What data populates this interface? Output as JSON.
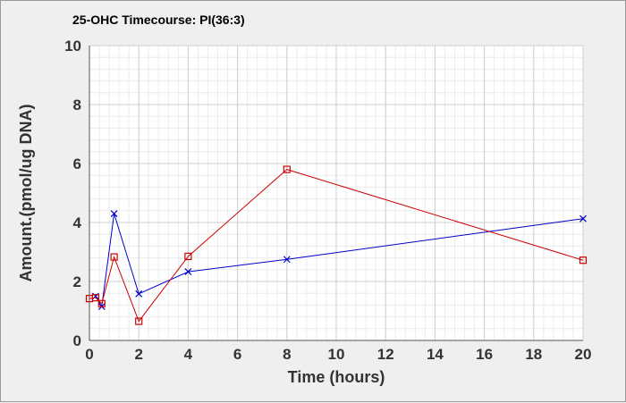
{
  "chart_data": {
    "type": "line",
    "title": "25-OHC Timecourse: PI(36:3)",
    "xlabel": "Time (hours)",
    "ylabel": "Amount.(pmol/ug DNA)",
    "xlim": [
      0,
      20
    ],
    "ylim": [
      0,
      10
    ],
    "xticks": [
      0,
      2,
      4,
      6,
      8,
      10,
      12,
      14,
      16,
      18,
      20
    ],
    "yticks": [
      0,
      2,
      4,
      6,
      8,
      10
    ],
    "grid": true,
    "legend": "none",
    "series": [
      {
        "marker": "x",
        "color": "#0000cc",
        "x": [
          0.25,
          0.5,
          1,
          2,
          4,
          8,
          20
        ],
        "y": [
          1.5,
          1.15,
          4.3,
          1.58,
          2.33,
          2.75,
          4.13
        ]
      },
      {
        "marker": "square",
        "color": "#cc0000",
        "x": [
          0,
          0.25,
          0.5,
          1,
          2,
          4,
          8,
          20
        ],
        "y": [
          1.42,
          1.45,
          1.25,
          2.83,
          0.65,
          2.85,
          5.8,
          2.72
        ]
      }
    ]
  }
}
